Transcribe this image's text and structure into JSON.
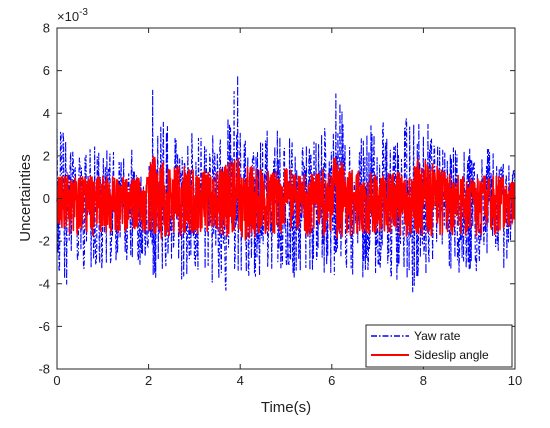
{
  "chart_data": {
    "type": "line",
    "title": "",
    "xlabel": "Time(s)",
    "ylabel": "Uncertainties",
    "y_multiplier": {
      "base": "×10",
      "exponent": "-3"
    },
    "xlim": [
      0,
      10
    ],
    "ylim": [
      -8,
      8
    ],
    "x_ticks": [
      0,
      2,
      4,
      6,
      8,
      10
    ],
    "y_ticks": [
      -8,
      -6,
      -4,
      -2,
      0,
      2,
      4,
      6,
      8
    ],
    "grid": false,
    "legend_position": "bottom-right",
    "series": [
      {
        "name": "Yaw rate",
        "color": "#0000ff",
        "style": "dash-dot",
        "x": [
          0,
          0.25,
          0.5,
          0.75,
          1.0,
          1.25,
          1.5,
          1.75,
          2.0,
          2.05,
          2.1,
          2.2,
          2.5,
          2.75,
          3.0,
          3.25,
          3.5,
          3.75,
          3.95,
          4.05,
          4.25,
          4.5,
          4.75,
          5.0,
          5.25,
          5.5,
          5.75,
          6.0,
          6.15,
          6.3,
          6.5,
          6.75,
          7.0,
          7.25,
          7.5,
          7.75,
          7.95,
          8.1,
          8.25,
          8.5,
          8.75,
          9.0,
          9.25,
          9.5,
          9.75,
          10.0
        ],
        "upper": [
          3.8,
          2.8,
          2.4,
          2.6,
          2.3,
          2.5,
          2.2,
          2.4,
          1.8,
          5.9,
          5.9,
          4.0,
          3.2,
          2.6,
          3.7,
          2.6,
          3.4,
          4.2,
          5.9,
          3.0,
          2.4,
          3.1,
          3.4,
          2.8,
          3.0,
          2.6,
          3.2,
          4.2,
          5.6,
          3.7,
          2.6,
          3.0,
          4.2,
          2.9,
          3.3,
          4.3,
          5.9,
          3.6,
          2.6,
          2.2,
          2.7,
          2.4,
          2.2,
          2.4,
          1.8,
          1.6
        ],
        "lower": [
          -3.6,
          -4.2,
          -3.0,
          -4.4,
          -3.6,
          -3.2,
          -3.0,
          -3.3,
          -2.6,
          -3.8,
          -3.8,
          -4.1,
          -3.4,
          -4.0,
          -3.2,
          -4.3,
          -4.0,
          -4.4,
          -3.4,
          -3.9,
          -3.6,
          -4.3,
          -3.1,
          -3.4,
          -4.0,
          -3.6,
          -3.2,
          -4.0,
          -3.1,
          -3.9,
          -3.6,
          -4.0,
          -3.8,
          -3.6,
          -4.2,
          -4.5,
          -3.2,
          -4.0,
          -3.6,
          -3.2,
          -3.5,
          -3.4,
          -3.6,
          -3.0,
          -3.4,
          -2.0
        ]
      },
      {
        "name": "Sideslip angle",
        "color": "#ff0000",
        "style": "solid",
        "x": [
          0,
          0.5,
          1.0,
          1.5,
          2.0,
          2.05,
          2.15,
          2.5,
          3.0,
          3.5,
          3.95,
          4.05,
          4.5,
          5.0,
          5.5,
          6.0,
          6.05,
          6.5,
          7.0,
          7.5,
          7.95,
          8.05,
          8.5,
          9.0,
          9.5,
          10.0
        ],
        "upper": [
          1.2,
          1.0,
          1.1,
          1.0,
          1.0,
          2.0,
          2.0,
          1.6,
          1.4,
          1.3,
          2.0,
          2.0,
          1.3,
          1.4,
          1.2,
          1.5,
          2.0,
          1.3,
          1.2,
          1.3,
          2.0,
          2.0,
          1.2,
          1.0,
          1.1,
          0.9
        ],
        "lower": [
          -1.5,
          -1.8,
          -1.7,
          -1.6,
          -1.6,
          -2.0,
          -2.0,
          -1.7,
          -1.8,
          -1.6,
          -2.0,
          -2.0,
          -1.7,
          -1.6,
          -1.8,
          -1.7,
          -2.0,
          -1.7,
          -1.6,
          -1.8,
          -2.0,
          -2.0,
          -1.7,
          -1.8,
          -1.9,
          -1.2
        ]
      }
    ]
  }
}
